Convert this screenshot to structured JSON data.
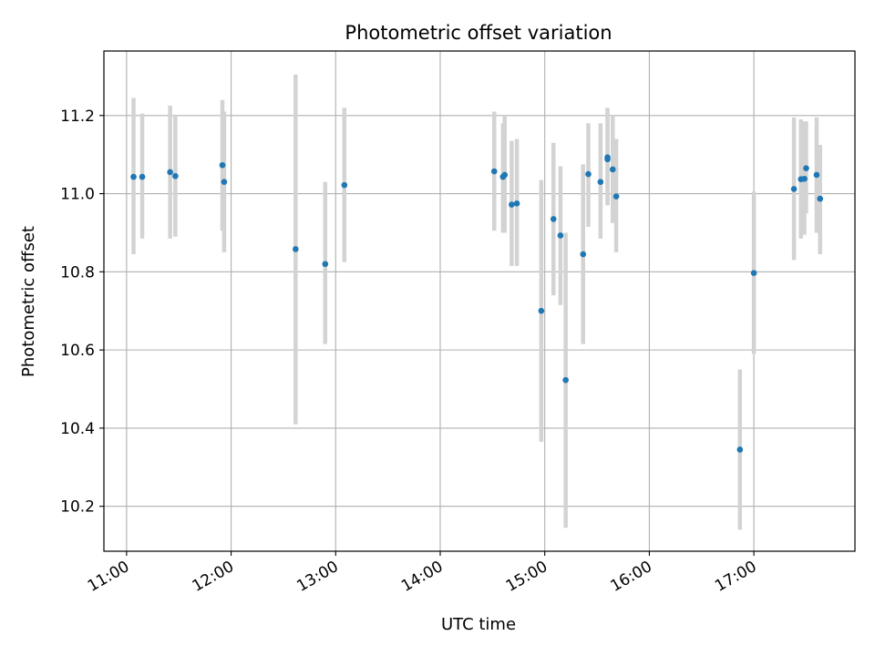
{
  "chart_data": {
    "type": "scatter",
    "title": "Photometric offset variation",
    "xlabel": "UTC time",
    "ylabel": "Photometric offset",
    "x_axis_format": "time HH:MM",
    "xlim": [
      "10:47",
      "17:58"
    ],
    "ylim": [
      10.085,
      11.365
    ],
    "xticks": [
      "11:00",
      "12:00",
      "13:00",
      "14:00",
      "15:00",
      "16:00",
      "17:00"
    ],
    "yticks": [
      10.2,
      10.4,
      10.6,
      10.8,
      11.0,
      11.2
    ],
    "ytick_labels": [
      "10.2",
      "10.4",
      "10.6",
      "10.8",
      "11.0",
      "11.2"
    ],
    "grid": true,
    "legend": "none",
    "colors": {
      "points": "#1f77b4",
      "errorbars": "#d3d3d3",
      "grid": "#b0b0b0"
    },
    "points": [
      {
        "x": "11:04",
        "y": 11.043,
        "low": 10.845,
        "high": 11.245
      },
      {
        "x": "11:09",
        "y": 11.043,
        "low": 10.885,
        "high": 11.205
      },
      {
        "x": "11:25",
        "y": 11.055,
        "low": 10.885,
        "high": 11.225
      },
      {
        "x": "11:28",
        "y": 11.045,
        "low": 10.89,
        "high": 11.2
      },
      {
        "x": "11:55",
        "y": 11.073,
        "low": 10.905,
        "high": 11.24
      },
      {
        "x": "11:56",
        "y": 11.03,
        "low": 10.85,
        "high": 11.21
      },
      {
        "x": "12:37",
        "y": 10.858,
        "low": 10.41,
        "high": 11.305
      },
      {
        "x": "12:54",
        "y": 10.82,
        "low": 10.615,
        "high": 11.03
      },
      {
        "x": "13:05",
        "y": 11.022,
        "low": 10.825,
        "high": 11.22
      },
      {
        "x": "14:31",
        "y": 11.057,
        "low": 10.905,
        "high": 11.21
      },
      {
        "x": "14:36",
        "y": 11.043,
        "low": 10.9,
        "high": 11.18
      },
      {
        "x": "14:37",
        "y": 11.048,
        "low": 10.9,
        "high": 11.2
      },
      {
        "x": "14:41",
        "y": 10.972,
        "low": 10.815,
        "high": 11.135
      },
      {
        "x": "14:44",
        "y": 10.975,
        "low": 10.815,
        "high": 11.14
      },
      {
        "x": "14:58",
        "y": 10.7,
        "low": 10.365,
        "high": 11.035
      },
      {
        "x": "15:05",
        "y": 10.935,
        "low": 10.74,
        "high": 11.13
      },
      {
        "x": "15:09",
        "y": 10.893,
        "low": 10.715,
        "high": 11.07
      },
      {
        "x": "15:12",
        "y": 10.523,
        "low": 10.145,
        "high": 10.9
      },
      {
        "x": "15:22",
        "y": 10.845,
        "low": 10.615,
        "high": 11.075
      },
      {
        "x": "15:25",
        "y": 11.05,
        "low": 10.915,
        "high": 11.18
      },
      {
        "x": "15:32",
        "y": 11.03,
        "low": 10.885,
        "high": 11.18
      },
      {
        "x": "15:36",
        "y": 11.093,
        "low": 10.97,
        "high": 11.22
      },
      {
        "x": "15:36",
        "y": 11.088,
        "low": 10.975,
        "high": 11.21
      },
      {
        "x": "15:39",
        "y": 11.062,
        "low": 10.925,
        "high": 11.2
      },
      {
        "x": "15:41",
        "y": 10.993,
        "low": 10.85,
        "high": 11.14
      },
      {
        "x": "16:52",
        "y": 10.345,
        "low": 10.14,
        "high": 10.55
      },
      {
        "x": "17:00",
        "y": 10.797,
        "low": 10.59,
        "high": 11.005
      },
      {
        "x": "17:23",
        "y": 11.012,
        "low": 10.83,
        "high": 11.195
      },
      {
        "x": "17:27",
        "y": 11.037,
        "low": 10.885,
        "high": 11.19
      },
      {
        "x": "17:29",
        "y": 11.038,
        "low": 10.895,
        "high": 11.185
      },
      {
        "x": "17:30",
        "y": 11.065,
        "low": 10.95,
        "high": 11.185
      },
      {
        "x": "17:36",
        "y": 11.048,
        "low": 10.9,
        "high": 11.195
      },
      {
        "x": "17:38",
        "y": 10.987,
        "low": 10.845,
        "high": 11.125
      }
    ]
  }
}
